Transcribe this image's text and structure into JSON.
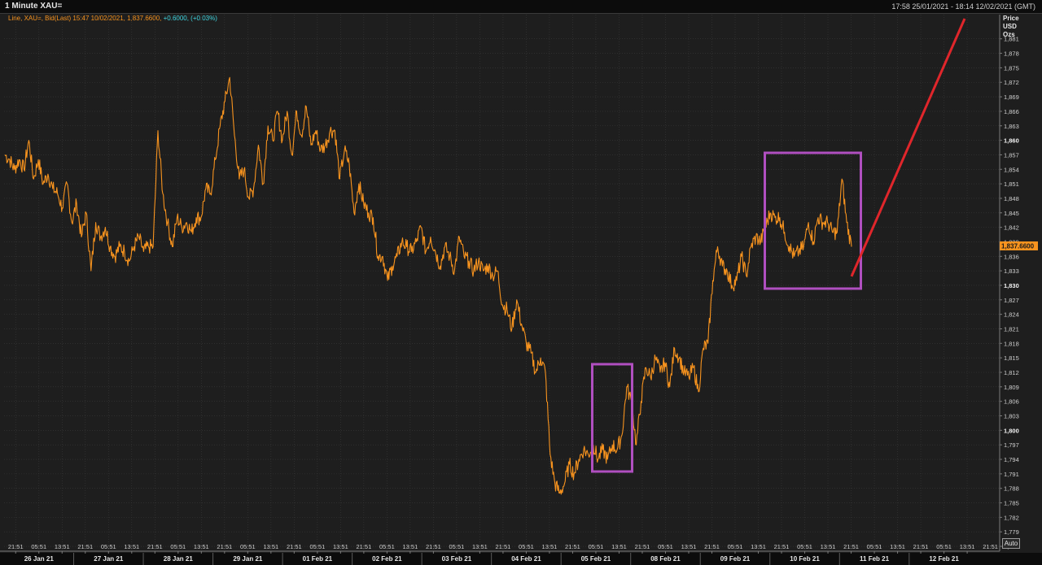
{
  "window": {
    "title": "1 Minute XAU=",
    "range": "17:58 25/01/2021 - 18:14 12/02/2021 (GMT)",
    "legend_main": "Line, XAU=, Bid(Last) 15:47 10/02/2021, 1,837.6600, ",
    "legend_change": "+0.6000, (+0.03%)",
    "axis_unit": [
      "Price",
      "USD",
      "Ozs"
    ],
    "auto_label": "Auto",
    "last_price_tag": "1,837.6600"
  },
  "colors": {
    "background": "#1e1e1e",
    "price_line": "#f7931e",
    "box": "#b04fc0",
    "arrow": "#e0262b",
    "grid": "#3a3a3a",
    "change": "#3fd6e0"
  },
  "chart_data": {
    "type": "line",
    "title": "1 Minute XAU=",
    "xlabel": "",
    "ylabel": "Price USD Ozs",
    "ylim": [
      1775,
      1886
    ],
    "grid": true,
    "y_ticks": [
      1776,
      1779,
      1782,
      1785,
      1788,
      1791,
      1794,
      1797,
      1800,
      1803,
      1806,
      1809,
      1812,
      1815,
      1818,
      1821,
      1824,
      1827,
      1830,
      1833,
      1836,
      1839,
      1842,
      1845,
      1848,
      1851,
      1854,
      1857,
      1860,
      1863,
      1866,
      1869,
      1872,
      1875,
      1878,
      1881
    ],
    "y_tick_labels": [
      "1,776",
      "1,779",
      "1,782",
      "1,785",
      "1,788",
      "1,791",
      "1,794",
      "1,797",
      "1,800",
      "1,803",
      "1,806",
      "1,809",
      "1,812",
      "1,815",
      "1,818",
      "1,821",
      "1,824",
      "1,827",
      "1,830",
      "1,833",
      "1,836",
      "1,839",
      "1,842",
      "1,845",
      "1,848",
      "1,851",
      "1,854",
      "1,857",
      "1,860",
      "1,863",
      "1,866",
      "1,869",
      "1,872",
      "1,875",
      "1,878",
      "1,881"
    ],
    "y_bold_ticks": [
      1800,
      1830,
      1860
    ],
    "days": [
      "26 Jan 21",
      "27 Jan 21",
      "28 Jan 21",
      "29 Jan 21",
      "01 Feb 21",
      "02 Feb 21",
      "03 Feb 21",
      "04 Feb 21",
      "05 Feb 21",
      "08 Feb 21",
      "09 Feb 21",
      "10 Feb 21",
      "11 Feb 21",
      "12 Feb 21"
    ],
    "time_ticks": [
      "21:51",
      "05:51",
      "13:51"
    ],
    "last_time_tick": "21:51",
    "series": [
      {
        "values": [
          1857,
          1856,
          1854,
          1856,
          1854,
          1860,
          1852,
          1856,
          1851,
          1853,
          1850,
          1849,
          1846,
          1851,
          1843,
          1847,
          1840,
          1845,
          1833,
          1843,
          1840,
          1842,
          1838,
          1836,
          1838,
          1837,
          1835,
          1838,
          1840,
          1837,
          1838,
          1838,
          1862,
          1849,
          1843,
          1838,
          1844,
          1842,
          1843,
          1841,
          1844,
          1844,
          1850,
          1849,
          1856,
          1863,
          1868,
          1873,
          1861,
          1852,
          1854,
          1848,
          1850,
          1859,
          1851,
          1863,
          1860,
          1866,
          1860,
          1866,
          1857,
          1866,
          1861,
          1867,
          1859,
          1862,
          1858,
          1859,
          1862,
          1862,
          1852,
          1858,
          1855,
          1845,
          1851,
          1847,
          1845,
          1844,
          1836,
          1836,
          1831,
          1834,
          1836,
          1839,
          1838,
          1837,
          1839,
          1842,
          1837,
          1840,
          1837,
          1834,
          1838,
          1836,
          1833,
          1840,
          1836,
          1835,
          1833,
          1835,
          1833,
          1834,
          1832,
          1833,
          1826,
          1825,
          1821,
          1827,
          1822,
          1818,
          1816,
          1812,
          1815,
          1812,
          1795,
          1789,
          1787,
          1789,
          1793,
          1791,
          1794,
          1796,
          1795,
          1797,
          1794,
          1796,
          1794,
          1797,
          1796,
          1799,
          1809,
          1806,
          1797,
          1806,
          1813,
          1811,
          1815,
          1812,
          1814,
          1809,
          1817,
          1815,
          1812,
          1811,
          1813,
          1808,
          1817,
          1818,
          1831,
          1838,
          1834,
          1833,
          1830,
          1831,
          1836,
          1832,
          1838,
          1840,
          1839,
          1842,
          1845,
          1844,
          1844,
          1841,
          1838,
          1836,
          1837,
          1838,
          1843,
          1839,
          1844,
          1843,
          1843,
          1841,
          1841,
          1852,
          1843,
          1838
        ]
      }
    ]
  }
}
